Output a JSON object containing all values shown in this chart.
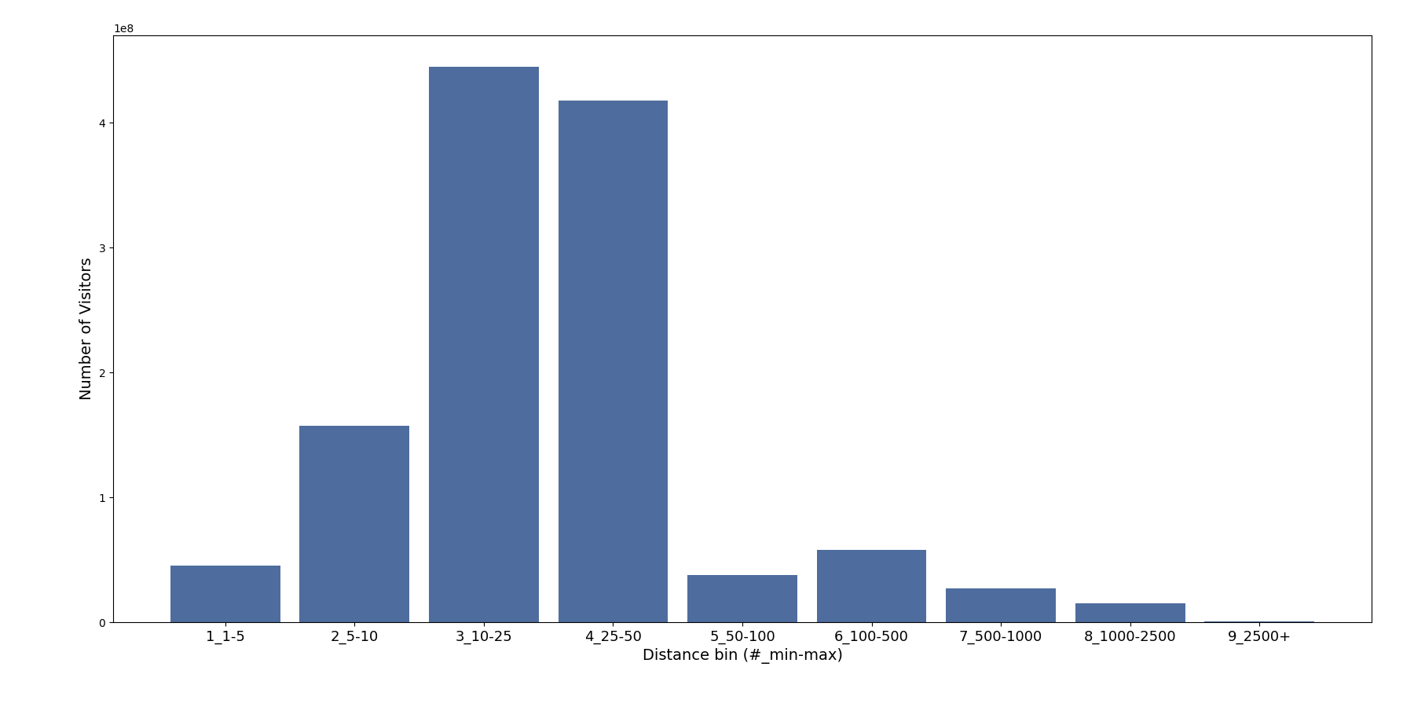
{
  "categories": [
    "1_1-5",
    "2_5-10",
    "3_10-25",
    "4_25-50",
    "5_50-100",
    "6_100-500",
    "7_500-1000",
    "8_1000-2500",
    "9_2500+"
  ],
  "values": [
    45000000.0,
    157000000.0,
    445000000.0,
    418000000.0,
    38000000.0,
    58000000.0,
    27000000.0,
    15000000.0,
    500000.0
  ],
  "bar_color": "#4e6d9e",
  "xlabel": "Distance bin (#_min-max)",
  "ylabel": "Number of Visitors",
  "ylim": [
    0,
    470000000.0
  ],
  "background_color": "#ffffff",
  "figsize": [
    18.0,
    9.0
  ],
  "dpi": 100,
  "bar_width": 0.85
}
